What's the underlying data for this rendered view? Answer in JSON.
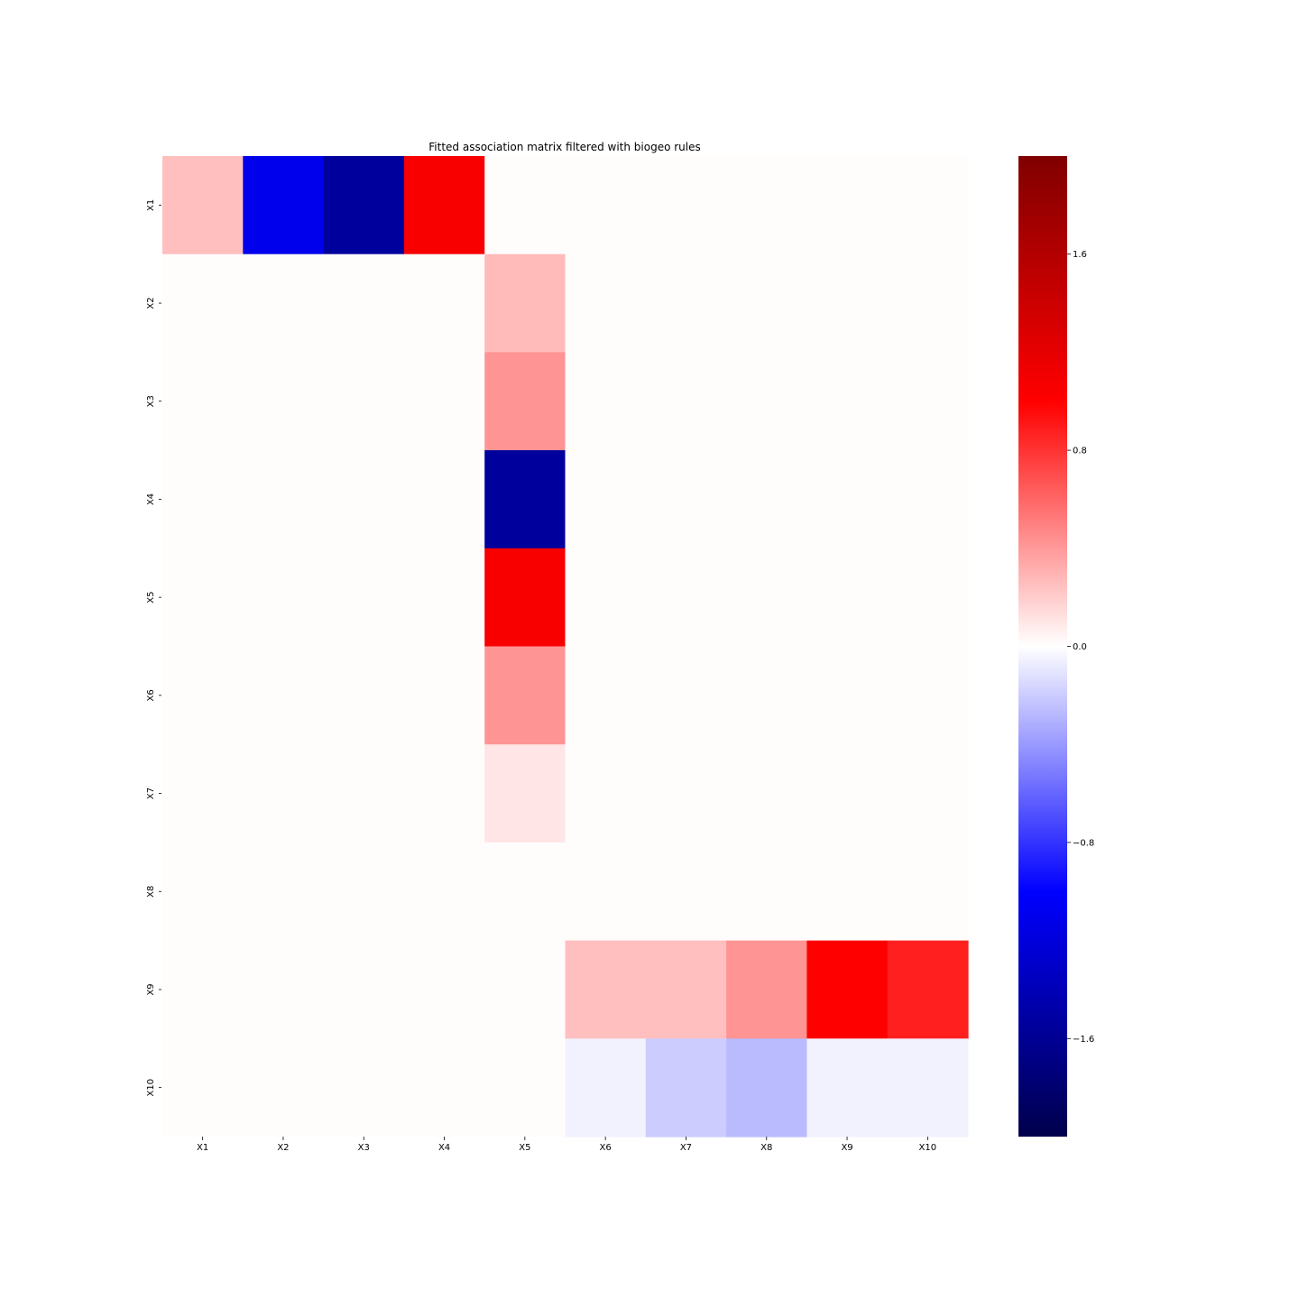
{
  "chart_data": {
    "type": "heatmap",
    "title": "Fitted association matrix filtered with biogeo rules",
    "xlabel": "",
    "ylabel": "",
    "x_categories": [
      "X1",
      "X2",
      "X3",
      "X4",
      "X5",
      "X6",
      "X7",
      "X8",
      "X9",
      "X10"
    ],
    "y_categories": [
      "X1",
      "X2",
      "X3",
      "X4",
      "X5",
      "X6",
      "X7",
      "X8",
      "X9",
      "X10"
    ],
    "values": [
      [
        0.25,
        -1.1,
        -1.55,
        1.05,
        0,
        0,
        0,
        0,
        0,
        0
      ],
      [
        0,
        0,
        0,
        0,
        0.27,
        0,
        0,
        0,
        0,
        0
      ],
      [
        0,
        0,
        0,
        0,
        0.42,
        0,
        0,
        0,
        0,
        0
      ],
      [
        0,
        0,
        0,
        0,
        -1.55,
        0,
        0,
        0,
        0,
        0
      ],
      [
        0,
        0,
        0,
        0,
        1.05,
        0,
        0,
        0,
        0,
        0
      ],
      [
        0,
        0,
        0,
        0,
        0.42,
        0,
        0,
        0,
        0,
        0
      ],
      [
        0,
        0,
        0,
        0,
        0.1,
        0,
        0,
        0,
        0,
        0
      ],
      [
        0,
        0,
        0,
        0,
        0,
        0,
        0,
        0,
        0,
        0
      ],
      [
        0,
        0,
        0,
        0,
        0,
        0.25,
        0.25,
        0.42,
        1.0,
        0.88
      ],
      [
        0,
        0,
        0,
        0,
        0,
        -0.05,
        -0.2,
        -0.27,
        -0.05,
        -0.05
      ]
    ],
    "colorbar": {
      "colormap": "seismic",
      "vmin": -2.0,
      "vmax": 2.0,
      "ticks": [
        1.6,
        0.8,
        0.0,
        -0.8,
        -1.6
      ],
      "tick_labels": [
        "1.6",
        "0.8",
        "0.0",
        "−0.8",
        "−1.6"
      ]
    },
    "grid": false,
    "legend": "colorbar-right"
  }
}
